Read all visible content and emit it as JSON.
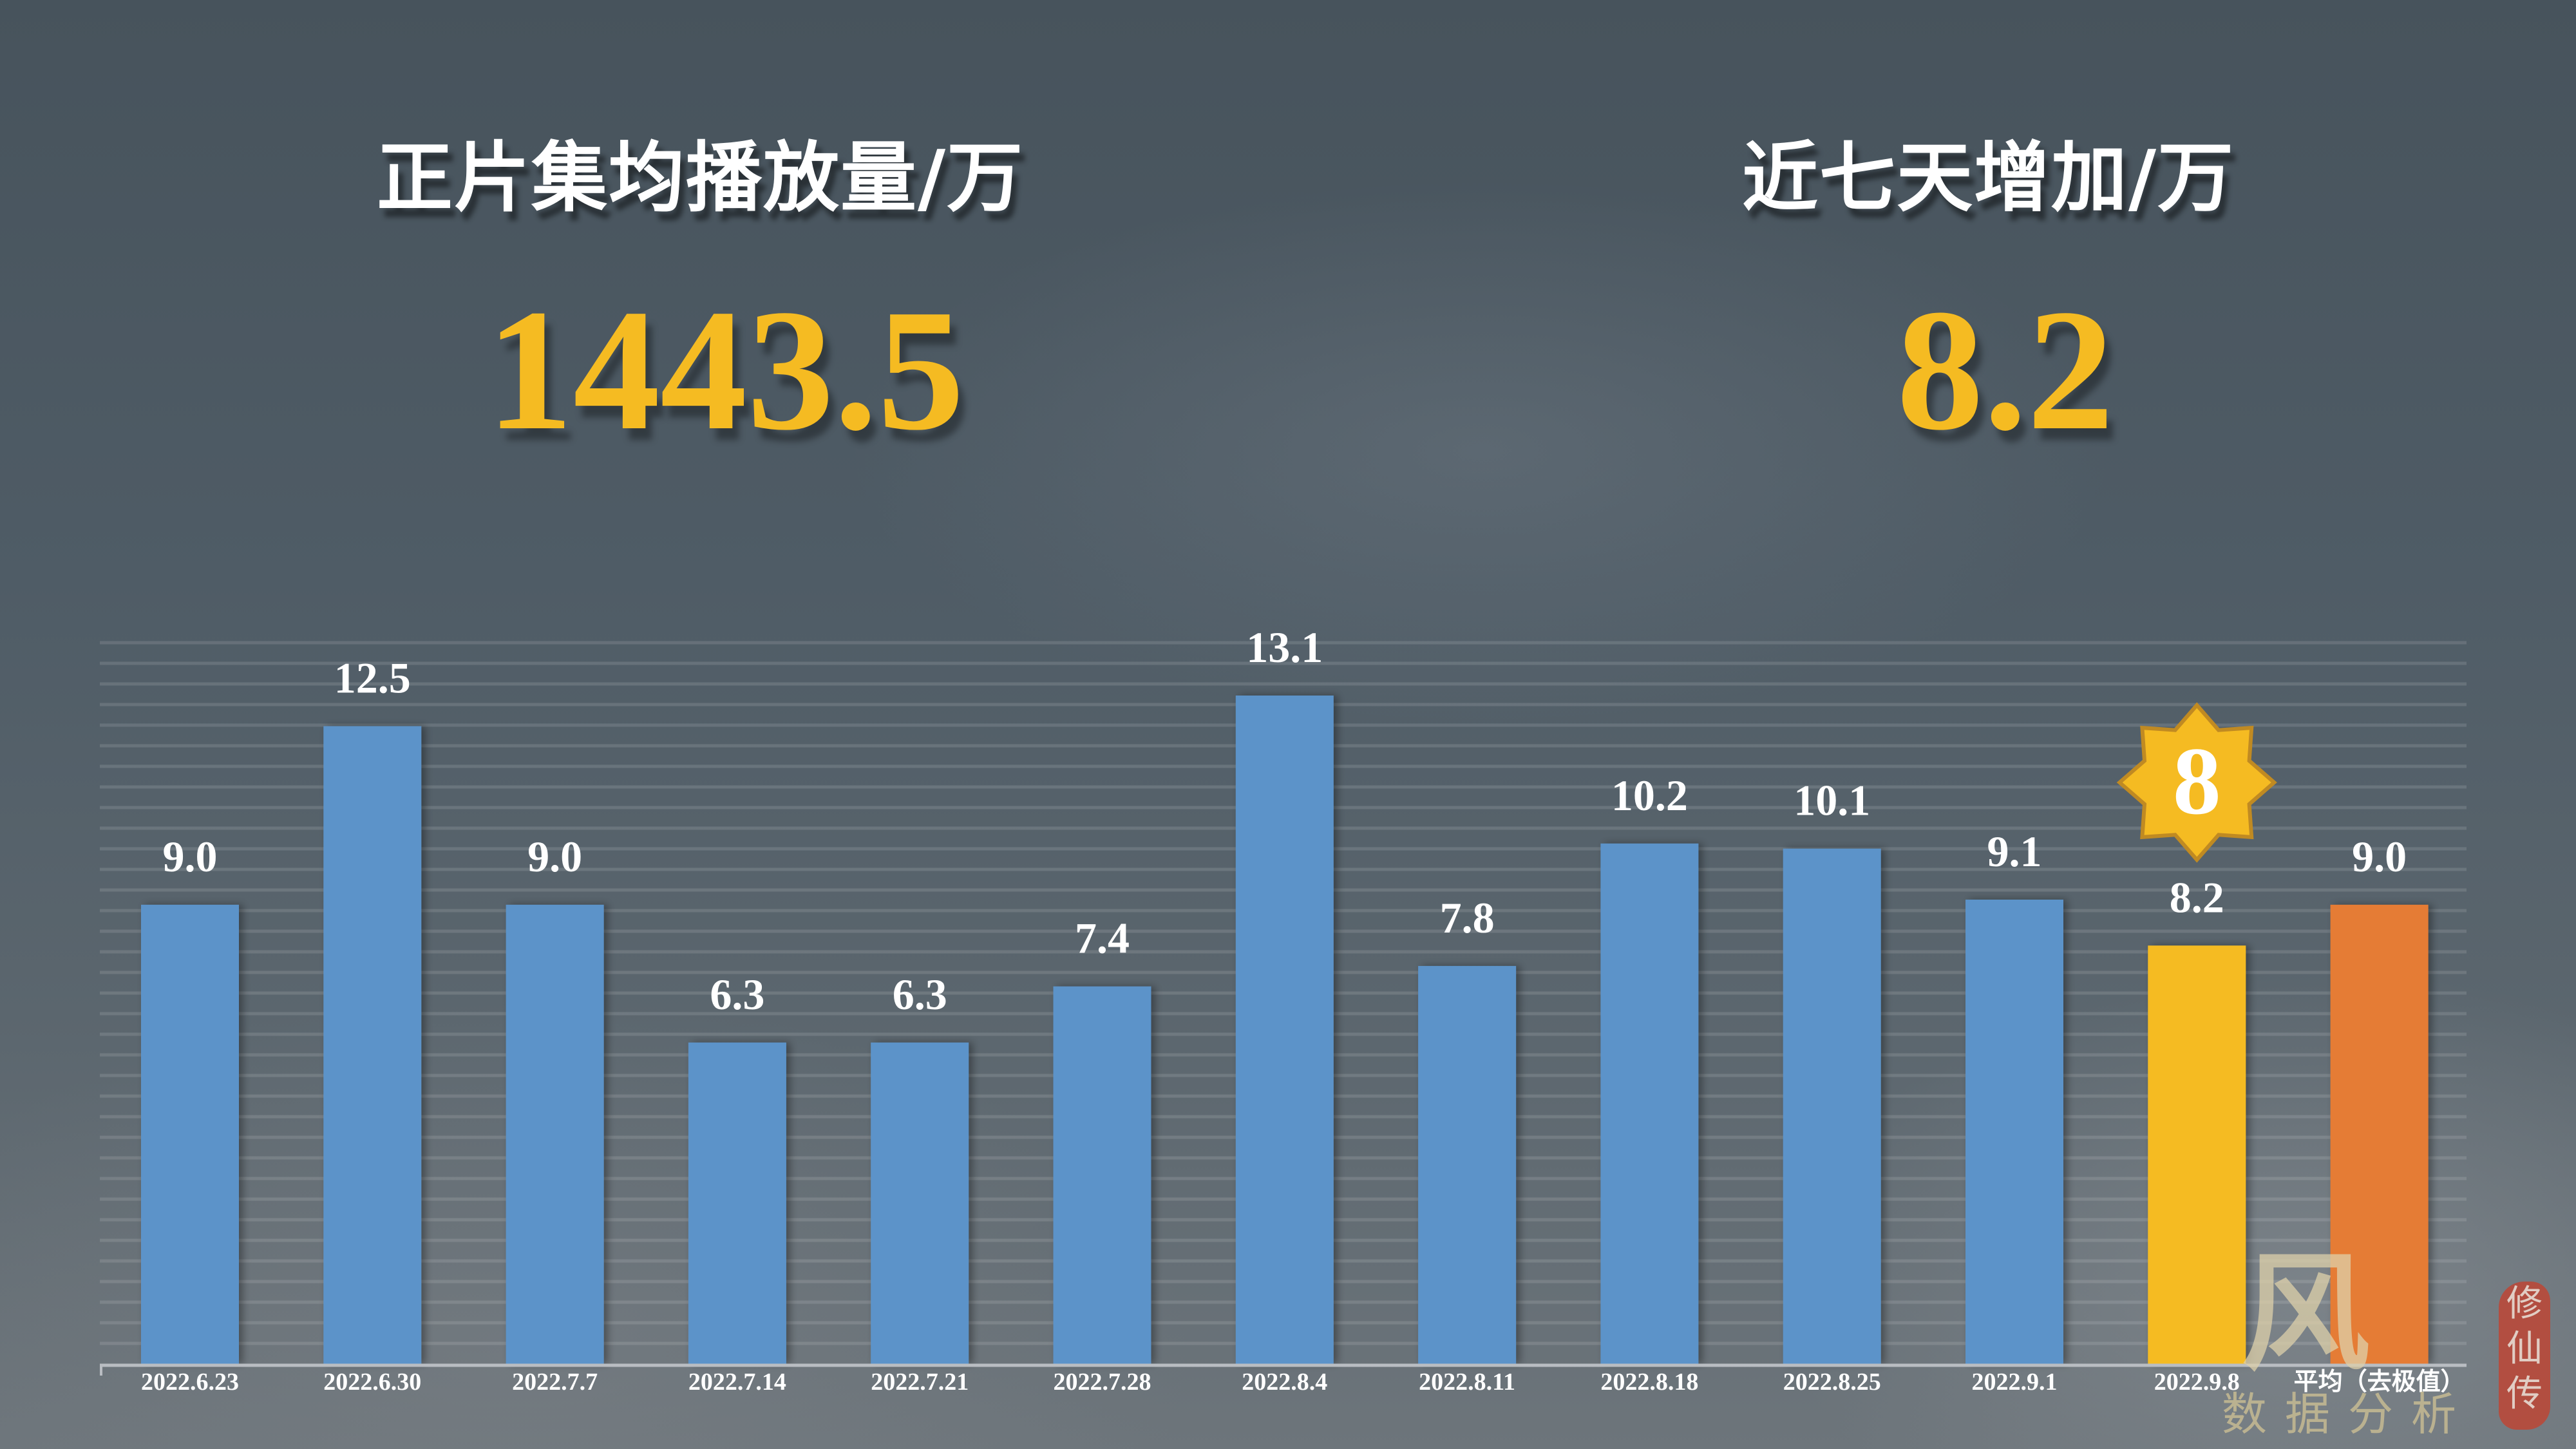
{
  "kpis": [
    {
      "title": "正片集均播放量/万",
      "value": "1443.5"
    },
    {
      "title": "近七天增加/万",
      "value": "8.2"
    }
  ],
  "badge": {
    "text": "8",
    "color": "#f5bb22",
    "border": "#c08a22"
  },
  "watermark": {
    "seal_chars": [
      "修",
      "仙",
      "传"
    ],
    "feng": "风",
    "text": "数据分析"
  },
  "colors": {
    "bar_default": "#5b93c9",
    "bar_highlight": "#f5bb22",
    "bar_average": "#e57b34",
    "label": "#ffffff",
    "grid": "rgba(255,255,255,0.12)",
    "axis": "#b9bdc2"
  },
  "chart_data": {
    "type": "bar",
    "title": "",
    "xlabel": "",
    "ylabel": "",
    "ylim": [
      0,
      14
    ],
    "grid": true,
    "legend": null,
    "categories": [
      "2022.6.23",
      "2022.6.30",
      "2022.7.7",
      "2022.7.14",
      "2022.7.21",
      "2022.7.28",
      "2022.8.4",
      "2022.8.11",
      "2022.8.18",
      "2022.8.25",
      "2022.9.1",
      "2022.9.8",
      "平均（去极值）"
    ],
    "values": [
      9.0,
      12.5,
      9.0,
      6.3,
      6.3,
      7.4,
      13.1,
      7.8,
      10.2,
      10.1,
      9.1,
      8.2,
      9.0
    ],
    "value_labels": [
      "9.0",
      "12.5",
      "9.0",
      "6.3",
      "6.3",
      "7.4",
      "13.1",
      "7.8",
      "10.2",
      "10.1",
      "9.1",
      "8.2",
      "9.0"
    ],
    "bar_roles": [
      "default",
      "default",
      "default",
      "default",
      "default",
      "default",
      "default",
      "default",
      "default",
      "default",
      "default",
      "highlight",
      "average"
    ],
    "annotations": [
      {
        "category": "2022.9.8",
        "text": "8",
        "shape": "8-point-star-badge"
      }
    ]
  }
}
